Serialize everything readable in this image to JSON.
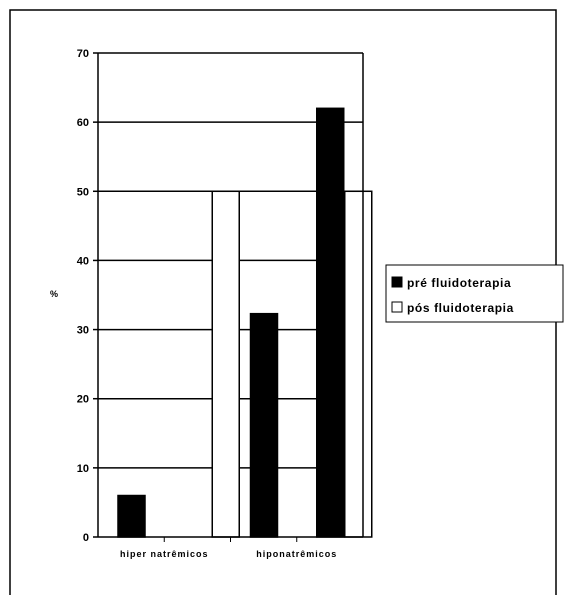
{
  "chart_data": {
    "type": "bar",
    "categories": [
      "hiper natrêmicos",
      "",
      "hiponatrêmicos",
      ""
    ],
    "series": [
      {
        "name": "pré fluidoterapia",
        "values": [
          6,
          0,
          32.3,
          62
        ],
        "color": "#000000"
      },
      {
        "name": "pós fluidoterapia",
        "values": [
          0,
          50,
          0,
          50
        ],
        "color": "#ffffff"
      }
    ],
    "ylabel": "%",
    "xlabel": "",
    "ylim": [
      0,
      70
    ],
    "yticks": [
      0,
      10,
      20,
      30,
      40,
      50,
      60,
      70
    ],
    "grid": true,
    "legend_position": "right"
  }
}
